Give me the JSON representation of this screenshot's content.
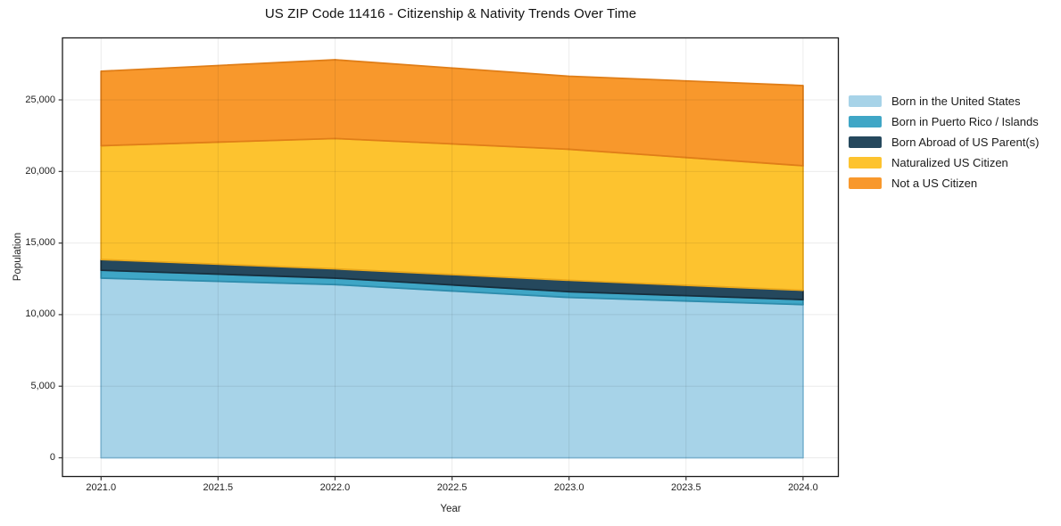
{
  "figure": {
    "title": "US ZIP Code 11416 - Citizenship & Nativity Trends Over Time"
  },
  "chart_data": {
    "type": "area",
    "stacked": true,
    "title": "US ZIP Code 11416 - Citizenship & Nativity Trends Over Time",
    "xlabel": "Year",
    "ylabel": "Population",
    "x": [
      2021,
      2022,
      2023,
      2024
    ],
    "series": [
      {
        "name": "Born in the United States",
        "values": [
          12550,
          12100,
          11200,
          10700
        ],
        "color": "#A7D3E8",
        "edge_color": "#86BFDC"
      },
      {
        "name": "Born in Puerto Rico / Islands",
        "values": [
          550,
          450,
          400,
          350
        ],
        "color": "#3FA6C6",
        "edge_color": "#2E8CAC"
      },
      {
        "name": "Born Abroad of US Parent(s)",
        "values": [
          750,
          650,
          800,
          650
        ],
        "color": "#25485D",
        "edge_color": "#172F3E"
      },
      {
        "name": "Naturalized US Citizen",
        "values": [
          7950,
          9100,
          9150,
          8700
        ],
        "color": "#FDC32F",
        "edge_color": "#EAA81B"
      },
      {
        "name": "Not a US Citizen",
        "values": [
          5200,
          5500,
          5100,
          5600
        ],
        "color": "#F8982C",
        "edge_color": "#E07E18"
      }
    ],
    "totals": [
      27000,
      27800,
      26650,
      26000
    ],
    "xlim": [
      2020.835,
      2024.151
    ],
    "ylim": [
      -1308,
      29330
    ],
    "xticks": {
      "values": [
        2021.0,
        2021.5,
        2022.0,
        2022.5,
        2023.0,
        2023.5,
        2024.0
      ],
      "labels": [
        "2021.0",
        "2021.5",
        "2022.0",
        "2022.5",
        "2023.0",
        "2023.5",
        "2024.0"
      ]
    },
    "yticks": {
      "values": [
        0,
        5000,
        10000,
        15000,
        20000,
        25000
      ],
      "labels": [
        "0",
        "5,000",
        "10,000",
        "15,000",
        "20,000",
        "25,000"
      ]
    },
    "grid": true,
    "legend_position": "right-outside-top",
    "colors": {
      "background": "#ffffff",
      "gridline": "rgba(0,0,0,0.08)",
      "spine": "#1a1a1a",
      "tick": "#333333",
      "text": "#1f1f1f"
    }
  }
}
